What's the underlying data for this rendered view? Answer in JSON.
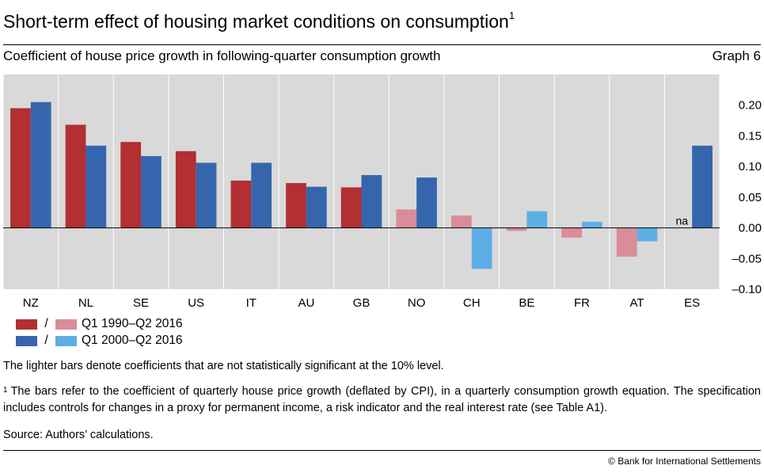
{
  "header": {
    "title": "Short-term effect of housing market conditions on consumption",
    "title_footnote_mark": "1",
    "subtitle": "Coefficient of house price growth in following-quarter consumption growth",
    "graph_number": "Graph 6"
  },
  "chart_data": {
    "type": "bar",
    "categories": [
      "NZ",
      "NL",
      "SE",
      "US",
      "IT",
      "AU",
      "GB",
      "NO",
      "CH",
      "BE",
      "FR",
      "AT",
      "ES"
    ],
    "series": [
      {
        "name": "Q1 1990–Q2 2016",
        "values": [
          0.195,
          0.168,
          0.14,
          0.125,
          0.077,
          0.073,
          0.066,
          0.03,
          0.02,
          -0.005,
          -0.016,
          -0.047,
          null
        ],
        "significant": [
          true,
          true,
          true,
          true,
          true,
          true,
          true,
          false,
          false,
          false,
          false,
          false,
          null
        ]
      },
      {
        "name": "Q1 2000–Q2 2016",
        "values": [
          0.205,
          0.134,
          0.117,
          0.106,
          0.106,
          0.067,
          0.086,
          0.082,
          -0.067,
          0.027,
          0.01,
          -0.022,
          0.134
        ],
        "significant": [
          true,
          true,
          true,
          true,
          true,
          true,
          true,
          true,
          false,
          false,
          false,
          false,
          true
        ]
      }
    ],
    "ylim": [
      -0.1,
      0.25
    ],
    "yticks": [
      0.2,
      0.15,
      0.1,
      0.05,
      0.0,
      -0.05,
      -0.1
    ],
    "ytick_labels": [
      "0.20",
      "0.15",
      "0.10",
      "0.05",
      "0.00",
      "–0.05",
      "–0.10"
    ],
    "annotations": [
      {
        "category": "ES",
        "series": 0,
        "text": "na"
      }
    ],
    "grid": "vertical separators",
    "legend_position": "bottom-left",
    "colors": {
      "series1_significant": "#b22f32",
      "series1_insignificant": "#d98c99",
      "series2_significant": "#3566ad",
      "series2_insignificant": "#5eaee6",
      "plot_background": "#d9d9d9"
    }
  },
  "legend": {
    "separator": "/",
    "items": [
      {
        "label": "Q1 1990–Q2 2016"
      },
      {
        "label": "Q1 2000–Q2 2016"
      }
    ]
  },
  "notes": {
    "significance": "The lighter bars denote coefficients that are not statistically significant at the 10% level.",
    "footnote_mark": "1",
    "footnote": "The bars refer to the coefficient of quarterly house price growth (deflated by CPI), in a quarterly consumption growth equation. The specification includes controls for changes in a proxy for permanent income, a risk indicator and the real interest rate (see Table A1).",
    "source": "Source: Authors’ calculations."
  },
  "footer": {
    "copyright": "© Bank for International Settlements"
  }
}
